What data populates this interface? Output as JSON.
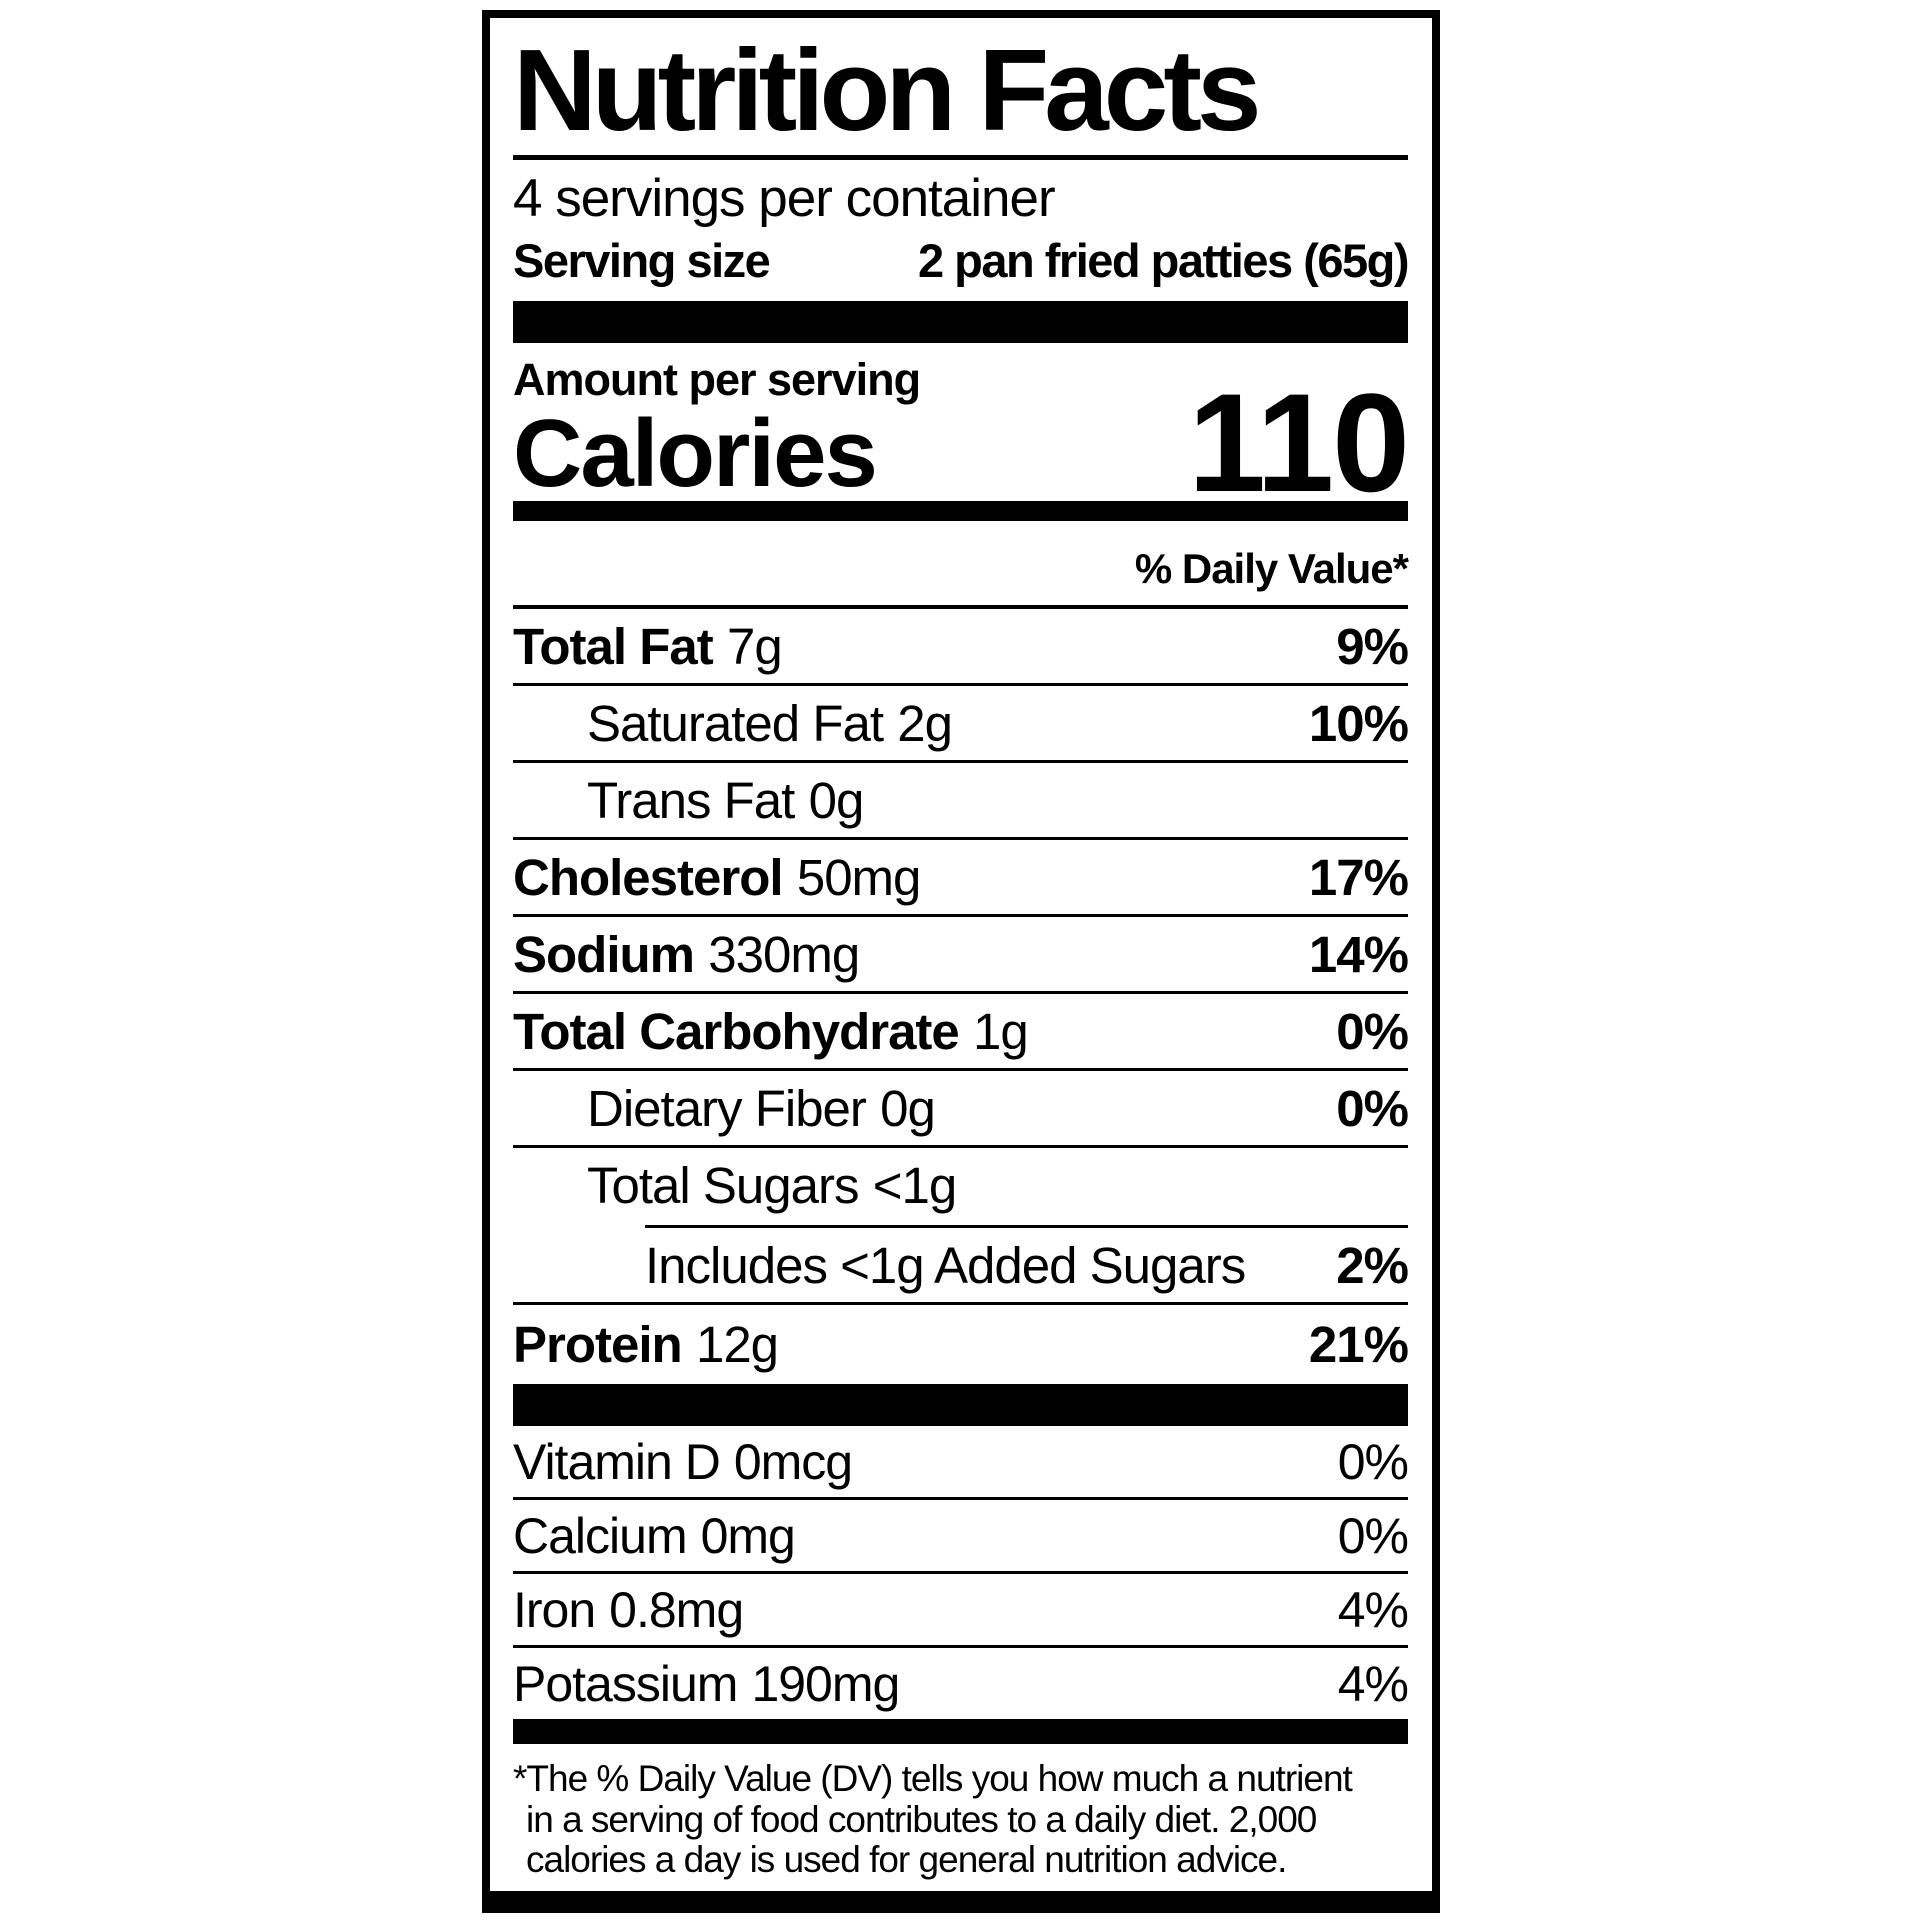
{
  "colors": {
    "ink": "#000000",
    "paper": "#ffffff"
  },
  "label": {
    "title": "Nutrition Facts",
    "servings_per_container": "4 servings per container",
    "serving_size": {
      "label": "Serving size",
      "value": "2 pan fried patties (65g)"
    },
    "amount_per_serving": "Amount per serving",
    "calories": {
      "label": "Calories",
      "value": "110"
    },
    "daily_value_header": "% Daily Value*",
    "nutrients": [
      {
        "name": "Total Fat",
        "amount": "7g",
        "dv": "9%"
      },
      {
        "name": "Saturated Fat",
        "amount": "2g",
        "dv": "10%"
      },
      {
        "name": "Trans Fat",
        "amount": "0g",
        "dv": ""
      },
      {
        "name": "Cholesterol",
        "amount": "50mg",
        "dv": "17%"
      },
      {
        "name": "Sodium",
        "amount": "330mg",
        "dv": "14%"
      },
      {
        "name": "Total Carbohydrate",
        "amount": "1g",
        "dv": "0%"
      },
      {
        "name": "Dietary Fiber",
        "amount": "0g",
        "dv": "0%"
      },
      {
        "name": "Total Sugars",
        "amount": "<1g",
        "dv": ""
      },
      {
        "name": "Includes <1g Added Sugars",
        "amount": "",
        "dv": "2%"
      },
      {
        "name": "Protein",
        "amount": "12g",
        "dv": "21%"
      }
    ],
    "vitamins": [
      {
        "name": "Vitamin D",
        "amount": "0mcg",
        "dv": "0%"
      },
      {
        "name": "Calcium",
        "amount": "0mg",
        "dv": "0%"
      },
      {
        "name": "Iron",
        "amount": "0.8mg",
        "dv": "4%"
      },
      {
        "name": "Potassium",
        "amount": "190mg",
        "dv": "4%"
      }
    ],
    "footnote": {
      "line1": "*The % Daily Value (DV) tells you how much a nutrient",
      "line2": "in a serving of food contributes to a daily diet. 2,000",
      "line3": "calories a day is used for general nutrition advice."
    }
  }
}
